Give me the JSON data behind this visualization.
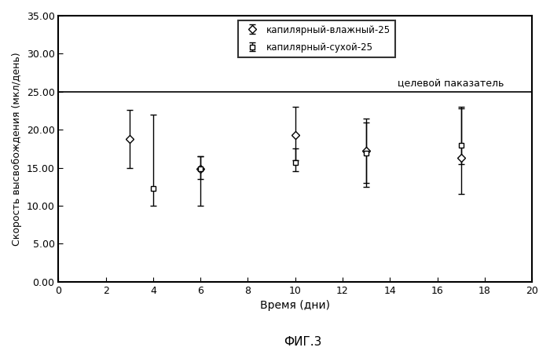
{
  "title": "ФИГ.3",
  "xlabel": "Время (дни)",
  "ylabel": "Скорость высвобождения (мкл/день)",
  "target_line_y": 25.0,
  "target_label": "целевой паказатель",
  "xlim": [
    0,
    20
  ],
  "ylim": [
    0.0,
    35.0
  ],
  "xticks": [
    0,
    2,
    4,
    6,
    8,
    10,
    12,
    14,
    16,
    18,
    20
  ],
  "yticks": [
    0.0,
    5.0,
    10.0,
    15.0,
    20.0,
    25.0,
    30.0,
    35.0
  ],
  "series1": {
    "label": "капилярный-влажный-25",
    "x": [
      3,
      6,
      10,
      13,
      17
    ],
    "y": [
      18.8,
      14.9,
      19.3,
      17.2,
      16.3
    ],
    "yerr_low": [
      3.8,
      4.9,
      3.3,
      4.2,
      0.8
    ],
    "yerr_high": [
      3.8,
      1.6,
      3.7,
      4.3,
      6.7
    ],
    "marker": "D",
    "markersize": 5,
    "color": "black",
    "linewidth": 1.2,
    "markerfacecolor": "white"
  },
  "series2": {
    "label": "капилярный-сухой-25",
    "x": [
      4,
      6,
      10,
      13,
      17
    ],
    "y": [
      12.3,
      14.9,
      15.7,
      16.9,
      18.0
    ],
    "yerr_low": [
      2.3,
      1.4,
      1.2,
      4.4,
      6.5
    ],
    "yerr_high": [
      9.7,
      1.6,
      1.8,
      4.1,
      4.8
    ],
    "marker": "s",
    "markersize": 5,
    "color": "black",
    "linewidth": 1.2,
    "markerfacecolor": "white"
  },
  "background_color": "white",
  "figsize": [
    7.0,
    4.47
  ],
  "dpi": 100
}
